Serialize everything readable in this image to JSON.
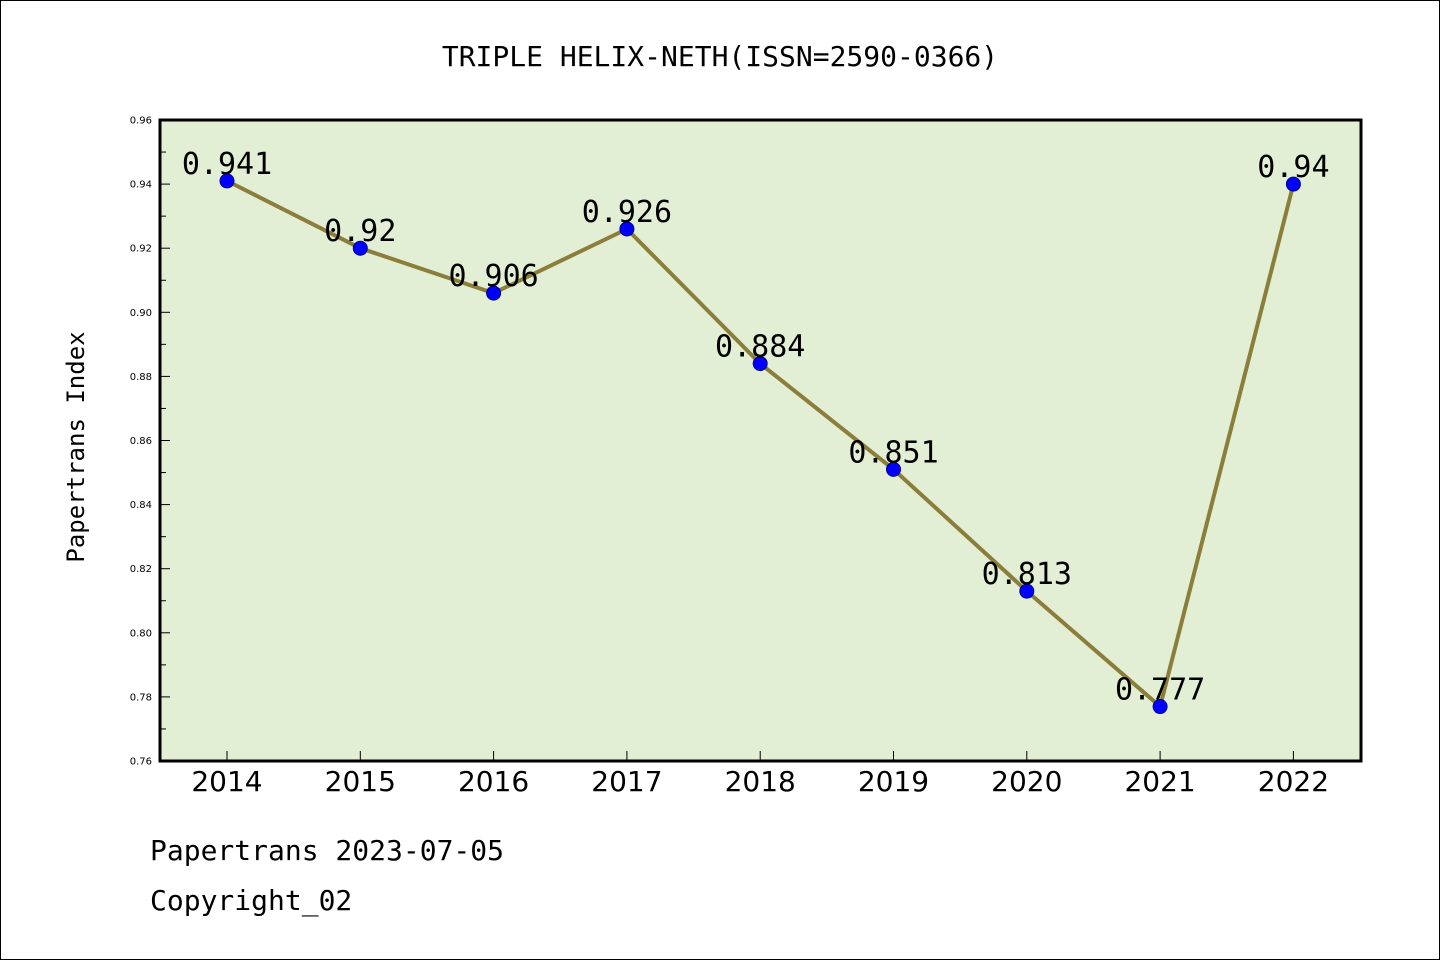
{
  "chart_data": {
    "type": "line",
    "title": "TRIPLE HELIX-NETH(ISSN=2590-0366)",
    "ylabel": "Papertrans Index",
    "xlabel": "",
    "categories": [
      "2014",
      "2015",
      "2016",
      "2017",
      "2018",
      "2019",
      "2020",
      "2021",
      "2022"
    ],
    "series": [
      {
        "values": [
          0.941,
          0.92,
          0.906,
          0.926,
          0.884,
          0.851,
          0.813,
          0.777,
          0.94
        ],
        "labels": [
          "0.941",
          "0.92",
          "0.906",
          "0.926",
          "0.884",
          "0.851",
          "0.813",
          "0.777",
          "0.94"
        ]
      }
    ],
    "ylim": [
      0.76,
      0.96
    ],
    "yticks": [
      "0.76",
      "0.78",
      "0.80",
      "0.82",
      "0.84",
      "0.86",
      "0.88",
      "0.90",
      "0.92",
      "0.94",
      "0.96"
    ],
    "grid": false,
    "legend": "none",
    "colors": {
      "plot_background": "#e2efd5",
      "line": "#8b7d3a",
      "marker": "#0000ff"
    }
  },
  "footer": {
    "date_line": "Papertrans 2023-07-05",
    "copyright": "Copyright_02"
  }
}
